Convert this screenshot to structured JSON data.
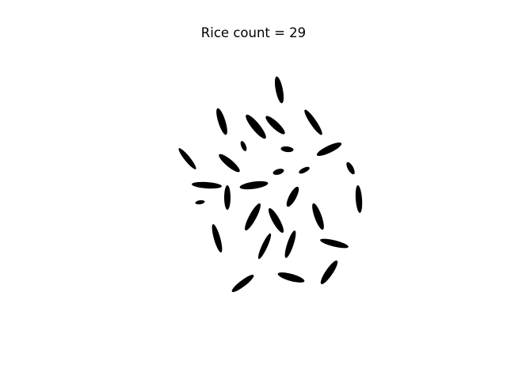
{
  "figure": {
    "title": "Rice count = 29",
    "background_color": "#ffffff",
    "grain_color": "#000000",
    "grain_count_shown": 29
  }
}
